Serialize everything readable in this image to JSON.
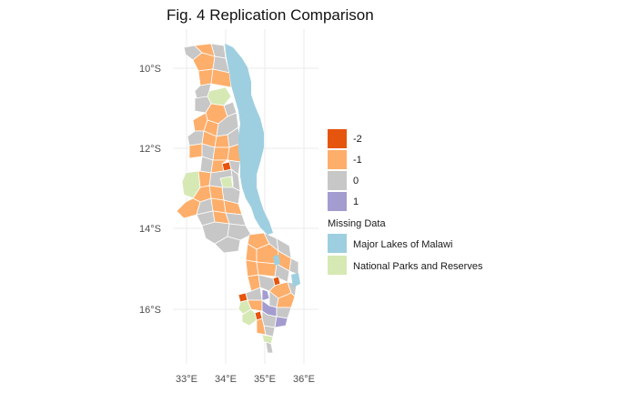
{
  "title": "Fig. 4 Replication Comparison",
  "axes": {
    "x": {
      "range": [
        32.6,
        36.2
      ],
      "ticks": [
        {
          "value": 33,
          "label": "33°E"
        },
        {
          "value": 34,
          "label": "34°E"
        },
        {
          "value": 35,
          "label": "35°E"
        },
        {
          "value": 36,
          "label": "36°E"
        }
      ]
    },
    "y": {
      "range": [
        -17.4,
        -9.2
      ],
      "ticks": [
        {
          "value": -10,
          "label": "10°S"
        },
        {
          "value": -12,
          "label": "12°S"
        },
        {
          "value": -14,
          "label": "14°S"
        },
        {
          "value": -16,
          "label": "16°S"
        }
      ]
    },
    "grid": true
  },
  "legend": {
    "placement": "right",
    "entries": [
      {
        "label": "-2",
        "color": "#e6550d"
      },
      {
        "label": "-1",
        "color": "#fdae6b"
      },
      {
        "label": "0",
        "color": "#c7c7c7"
      },
      {
        "label": "1",
        "color": "#a39ccf"
      },
      {
        "label": "Missing Data",
        "color": "#ffffff"
      },
      {
        "label": "Major Lakes of Malawi",
        "color": "#9ecfe0"
      },
      {
        "label": "National Parks and Reserves",
        "color": "#d6e9b4"
      }
    ]
  },
  "colors": {
    "lake": "#9ecfe0",
    "park": "#d6e9b4",
    "neg2": "#e6550d",
    "neg1": "#fdae6b",
    "zero": "#c7c7c7",
    "pos1": "#a39ccf",
    "border": "#ffffff"
  }
}
